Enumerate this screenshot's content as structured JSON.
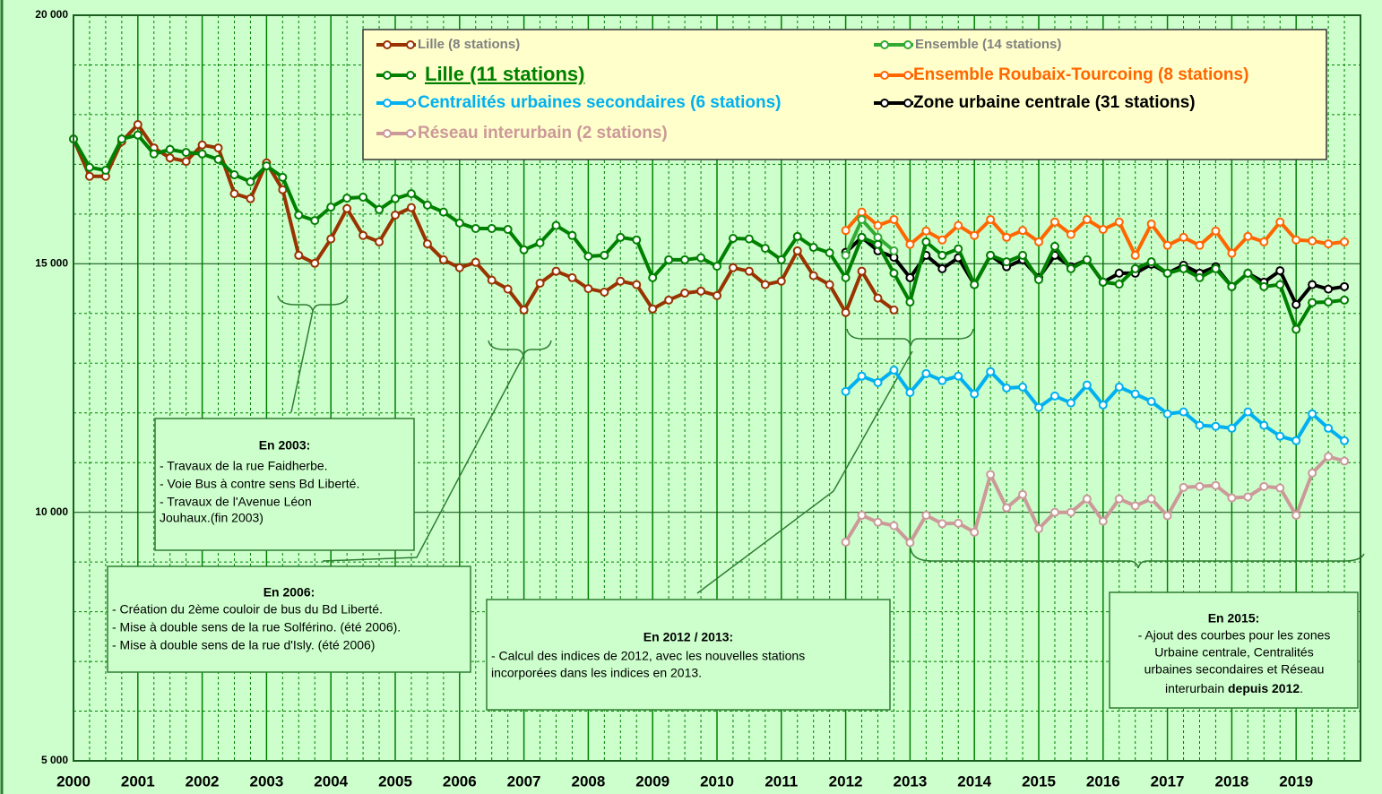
{
  "chart_data": {
    "type": "line",
    "x": [
      2000,
      2000.25,
      2000.5,
      2000.75,
      2001,
      2001.25,
      2001.5,
      2001.75,
      2002,
      2002.25,
      2002.5,
      2002.75,
      2003,
      2003.25,
      2003.5,
      2003.75,
      2004,
      2004.25,
      2004.5,
      2004.75,
      2005,
      2005.25,
      2005.5,
      2005.75,
      2006,
      2006.25,
      2006.5,
      2006.75,
      2007,
      2007.25,
      2007.5,
      2007.75,
      2008,
      2008.25,
      2008.5,
      2008.75,
      2009,
      2009.25,
      2009.5,
      2009.75,
      2010,
      2010.25,
      2010.5,
      2010.75,
      2011,
      2011.25,
      2011.5,
      2011.75,
      2012,
      2012.25,
      2012.5,
      2012.75,
      2013,
      2013.25,
      2013.5,
      2013.75,
      2014,
      2014.25,
      2014.5,
      2014.75,
      2015,
      2015.25,
      2015.5,
      2015.75,
      2016,
      2016.25,
      2016.5,
      2016.75,
      2017,
      2017.25,
      2017.5,
      2017.75,
      2018,
      2018.25,
      2018.5,
      2018.75,
      2019,
      2019.25,
      2019.5,
      2019.75
    ],
    "xlim": [
      2000,
      2020
    ],
    "xticks": [
      2000,
      2001,
      2002,
      2003,
      2004,
      2005,
      2006,
      2007,
      2008,
      2009,
      2010,
      2011,
      2012,
      2013,
      2014,
      2015,
      2016,
      2017,
      2018,
      2019
    ],
    "ylim": [
      5000,
      20000
    ],
    "yticks": [
      {
        "value": 5000,
        "label": "5 000"
      },
      {
        "value": 10000,
        "label": "10 000"
      },
      {
        "value": 15000,
        "label": "15 000"
      },
      {
        "value": 20000,
        "label": "20 000"
      }
    ],
    "y_minor_ticks": [
      6000,
      7000,
      8000,
      9000,
      11000,
      12000,
      13000,
      14000,
      16000,
      17000,
      18000,
      19000
    ],
    "grid": true,
    "series": [
      {
        "name": "Lille (8 stations)",
        "color": "#993300",
        "label_color": "#808080",
        "values": [
          17510,
          16760,
          16760,
          17460,
          17800,
          17330,
          17130,
          17060,
          17390,
          17330,
          16410,
          16310,
          17030,
          16490,
          15170,
          15010,
          15500,
          16110,
          15570,
          15440,
          15980,
          16130,
          15400,
          15080,
          14920,
          15030,
          14670,
          14490,
          14070,
          14610,
          14850,
          14720,
          14500,
          14430,
          14650,
          14580,
          14090,
          14270,
          14410,
          14450,
          14360,
          14920,
          14850,
          14580,
          14650,
          15260,
          14760,
          14580,
          14020,
          14850,
          14310,
          14070,
          null,
          null,
          null,
          null,
          null,
          null,
          null,
          null,
          null,
          null,
          null,
          null,
          null,
          null,
          null,
          null,
          null,
          null,
          null,
          null,
          null,
          null,
          null,
          null,
          null,
          null,
          null,
          null
        ]
      },
      {
        "name": "Ensemble (14 stations)",
        "color": "#33aa33",
        "label_color": "#808080",
        "values": [
          null,
          null,
          null,
          null,
          null,
          null,
          null,
          null,
          null,
          null,
          null,
          null,
          null,
          null,
          null,
          null,
          null,
          null,
          null,
          null,
          null,
          null,
          null,
          null,
          null,
          null,
          null,
          null,
          null,
          null,
          null,
          null,
          null,
          null,
          null,
          null,
          null,
          null,
          null,
          null,
          null,
          null,
          null,
          null,
          null,
          null,
          null,
          null,
          15170,
          15890,
          15530,
          15260,
          null,
          null,
          null,
          null,
          null,
          null,
          null,
          null,
          null,
          null,
          null,
          null,
          null,
          null,
          null,
          null,
          null,
          null,
          null,
          null,
          null,
          null,
          null,
          null,
          null,
          null,
          null,
          null
        ]
      },
      {
        "name": "Lille (11 stations)",
        "color": "#008000",
        "label_color": "#008000",
        "values": [
          17510,
          16940,
          16880,
          17510,
          17590,
          17210,
          17300,
          17240,
          17210,
          17100,
          16790,
          16650,
          16970,
          16740,
          15980,
          15870,
          16140,
          16320,
          16340,
          16090,
          16310,
          16410,
          16180,
          16040,
          15820,
          15710,
          15710,
          15690,
          15280,
          15420,
          15770,
          15570,
          15150,
          15170,
          15530,
          15480,
          14720,
          15080,
          15080,
          15120,
          14950,
          15510,
          15500,
          15310,
          15080,
          15550,
          15330,
          15220,
          14720,
          15530,
          15390,
          14810,
          14230,
          15440,
          15170,
          15300,
          14580,
          15170,
          15040,
          15170,
          14680,
          15350,
          14900,
          15080,
          14630,
          14590,
          14900,
          15040,
          14810,
          14900,
          14720,
          14900,
          14540,
          14810,
          14540,
          14580,
          13680,
          14220,
          14230,
          14270
        ]
      },
      {
        "name": "Ensemble Roubaix-Tourcoing (8 stations)",
        "color": "#ff6600",
        "label_color": "#ff6600",
        "values": [
          null,
          null,
          null,
          null,
          null,
          null,
          null,
          null,
          null,
          null,
          null,
          null,
          null,
          null,
          null,
          null,
          null,
          null,
          null,
          null,
          null,
          null,
          null,
          null,
          null,
          null,
          null,
          null,
          null,
          null,
          null,
          null,
          null,
          null,
          null,
          null,
          null,
          null,
          null,
          null,
          null,
          null,
          null,
          null,
          null,
          null,
          null,
          null,
          15670,
          16040,
          15770,
          15890,
          15390,
          15660,
          15480,
          15770,
          15570,
          15890,
          15530,
          15670,
          15440,
          15840,
          15590,
          15890,
          15690,
          15840,
          15170,
          15800,
          15370,
          15530,
          15370,
          15660,
          15210,
          15550,
          15440,
          15840,
          15480,
          15460,
          15400,
          15440
        ]
      },
      {
        "name": "Centralités urbaines secondaires (6 stations)",
        "color": "#00b0f0",
        "label_color": "#00b0f0",
        "values": [
          null,
          null,
          null,
          null,
          null,
          null,
          null,
          null,
          null,
          null,
          null,
          null,
          null,
          null,
          null,
          null,
          null,
          null,
          null,
          null,
          null,
          null,
          null,
          null,
          null,
          null,
          null,
          null,
          null,
          null,
          null,
          null,
          null,
          null,
          null,
          null,
          null,
          null,
          null,
          null,
          null,
          null,
          null,
          null,
          null,
          null,
          null,
          null,
          12430,
          12740,
          12610,
          12860,
          12410,
          12790,
          12650,
          12740,
          12380,
          12830,
          12500,
          12520,
          12110,
          12340,
          12200,
          12560,
          12160,
          12520,
          12380,
          12230,
          11980,
          12020,
          11750,
          11730,
          11690,
          12020,
          11750,
          11530,
          11440,
          11980,
          11690,
          11440
        ]
      },
      {
        "name": "Zone urbaine centrale (31 stations)",
        "color": "#000000",
        "label_color": "#000000",
        "values": [
          null,
          null,
          null,
          null,
          null,
          null,
          null,
          null,
          null,
          null,
          null,
          null,
          null,
          null,
          null,
          null,
          null,
          null,
          null,
          null,
          null,
          null,
          null,
          null,
          null,
          null,
          null,
          null,
          null,
          null,
          null,
          null,
          null,
          null,
          null,
          null,
          null,
          null,
          null,
          null,
          null,
          null,
          null,
          null,
          null,
          null,
          null,
          null,
          15230,
          15530,
          15260,
          15130,
          14720,
          15170,
          14900,
          15120,
          14580,
          15170,
          14940,
          15080,
          14720,
          15170,
          14940,
          15080,
          14630,
          14810,
          14810,
          14990,
          14810,
          14970,
          14810,
          14940,
          14540,
          14810,
          14630,
          14860,
          14180,
          14580,
          14490,
          14540
        ]
      },
      {
        "name": "Réseau interurbain (2 stations)",
        "color": "#cc9999",
        "label_color": "#cc9999",
        "values": [
          null,
          null,
          null,
          null,
          null,
          null,
          null,
          null,
          null,
          null,
          null,
          null,
          null,
          null,
          null,
          null,
          null,
          null,
          null,
          null,
          null,
          null,
          null,
          null,
          null,
          null,
          null,
          null,
          null,
          null,
          null,
          null,
          null,
          null,
          null,
          null,
          null,
          null,
          null,
          null,
          null,
          null,
          null,
          null,
          null,
          null,
          null,
          null,
          9400,
          9940,
          9800,
          9730,
          9390,
          9940,
          9770,
          9780,
          9600,
          10760,
          10090,
          10360,
          9670,
          10000,
          10000,
          10270,
          9820,
          10270,
          10130,
          10270,
          9930,
          10500,
          10520,
          10540,
          10290,
          10310,
          10520,
          10490,
          9940,
          10790,
          11120,
          11030
        ]
      }
    ],
    "annotations": [
      {
        "title": "En 2003:",
        "lines": [
          "- Travaux  de la rue Faidherbe.",
          "- Voie Bus à contre sens Bd Liberté.",
          "- Travaux  de l'Avenue Léon",
          "Jouhaux.(fin 2003)"
        ]
      },
      {
        "title": "En 2006:",
        "lines": [
          "- Création du 2ème couloir de bus du Bd Liberté.",
          "- Mise à double sens de la rue Solférino. (été 2006).",
          "- Mise à double sens de la rue d'Isly.  (été 2006)"
        ]
      },
      {
        "title": "En 2012 / 2013:",
        "lines": [
          "- Calcul des indices de 2012, avec les nouvelles stations",
          "incorporées dans les indices en 2013."
        ]
      },
      {
        "title": "En 2015:",
        "lines": [
          "- Ajout des courbes pour les zones",
          "Urbaine centrale, Centralités",
          "urbaines secondaires et Réseau",
          [
            "interurbain ",
            "depuis 2012",
            "."
          ]
        ]
      }
    ]
  }
}
